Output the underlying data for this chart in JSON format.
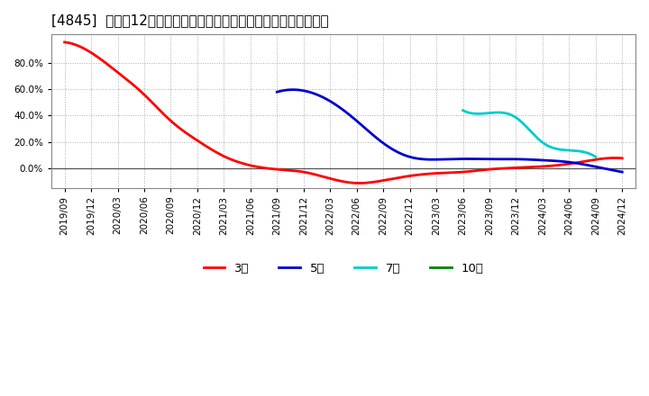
{
  "title": "[4845]  売上高12か月移動合計の対前年同期増減率の平均値の推移",
  "ylim": [
    -0.15,
    1.02
  ],
  "yticks": [
    0.0,
    0.2,
    0.4,
    0.6,
    0.8
  ],
  "background_color": "#ffffff",
  "plot_bg_color": "#ffffff",
  "grid_color": "#aaaaaa",
  "series_3": {
    "color": "#ff0000",
    "xi": [
      0,
      1,
      2,
      3,
      4,
      5,
      6,
      7,
      8,
      9,
      10,
      11,
      12,
      13,
      14,
      15,
      16,
      17,
      18,
      19,
      20,
      21
    ],
    "y": [
      0.96,
      0.88,
      0.73,
      0.56,
      0.36,
      0.21,
      0.09,
      0.02,
      -0.01,
      -0.03,
      -0.08,
      -0.115,
      -0.095,
      -0.06,
      -0.04,
      -0.03,
      -0.01,
      0.002,
      0.012,
      0.032,
      0.065,
      0.075
    ]
  },
  "series_5": {
    "color": "#0000cc",
    "xi": [
      8,
      9,
      10,
      11,
      12,
      13,
      14,
      15,
      16,
      17,
      18,
      19,
      20,
      21
    ],
    "y": [
      0.58,
      0.59,
      0.51,
      0.36,
      0.19,
      0.085,
      0.065,
      0.07,
      0.068,
      0.068,
      0.06,
      0.045,
      0.01,
      -0.03
    ]
  },
  "series_7": {
    "color": "#00cccc",
    "xi": [
      15,
      16,
      17,
      18,
      19,
      20
    ],
    "y": [
      0.44,
      0.42,
      0.385,
      0.195,
      0.135,
      0.085
    ]
  },
  "series_10": {
    "color": "#008000",
    "xi": [],
    "y": []
  },
  "all_ticks": [
    "2019/09",
    "2019/12",
    "2020/03",
    "2020/06",
    "2020/09",
    "2020/12",
    "2021/03",
    "2021/06",
    "2021/09",
    "2021/12",
    "2022/03",
    "2022/06",
    "2022/09",
    "2022/12",
    "2023/03",
    "2023/06",
    "2023/09",
    "2023/12",
    "2024/03",
    "2024/06",
    "2024/09",
    "2024/12"
  ],
  "legend_entries": [
    "3年",
    "5年",
    "7年",
    "10年"
  ],
  "legend_colors": [
    "#ff0000",
    "#0000cc",
    "#00cccc",
    "#008000"
  ],
  "title_fontsize": 11,
  "tick_fontsize": 7.5,
  "legend_fontsize": 9.5
}
